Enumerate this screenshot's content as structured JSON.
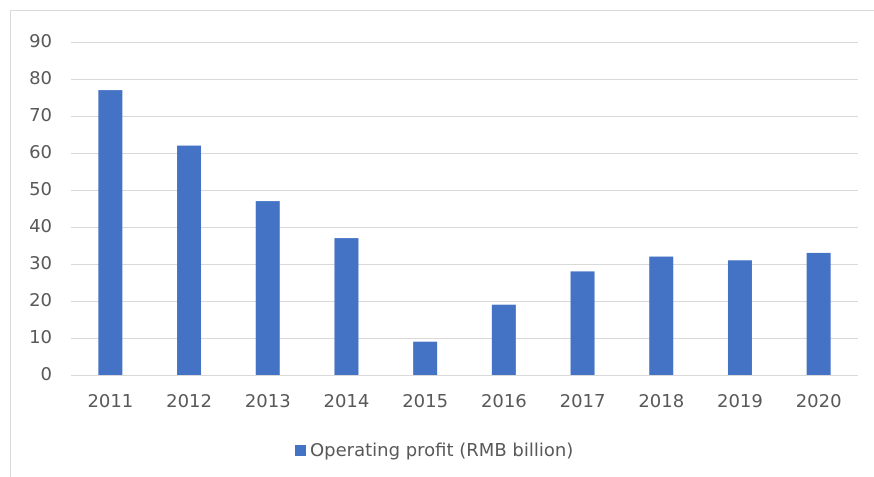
{
  "chart_data": {
    "type": "bar",
    "categories": [
      "2011",
      "2012",
      "2013",
      "2014",
      "2015",
      "2016",
      "2017",
      "2018",
      "2019",
      "2020"
    ],
    "series": [
      {
        "name": "Operating profit (RMB billion)",
        "color": "#4472c4",
        "values": [
          77,
          62,
          47,
          37,
          9,
          19,
          28,
          32,
          31,
          33
        ]
      }
    ],
    "ylim": [
      0,
      90
    ],
    "yticks": [
      0,
      10,
      20,
      30,
      40,
      50,
      60,
      70,
      80,
      90
    ],
    "grid": true,
    "legend": "bottom"
  }
}
